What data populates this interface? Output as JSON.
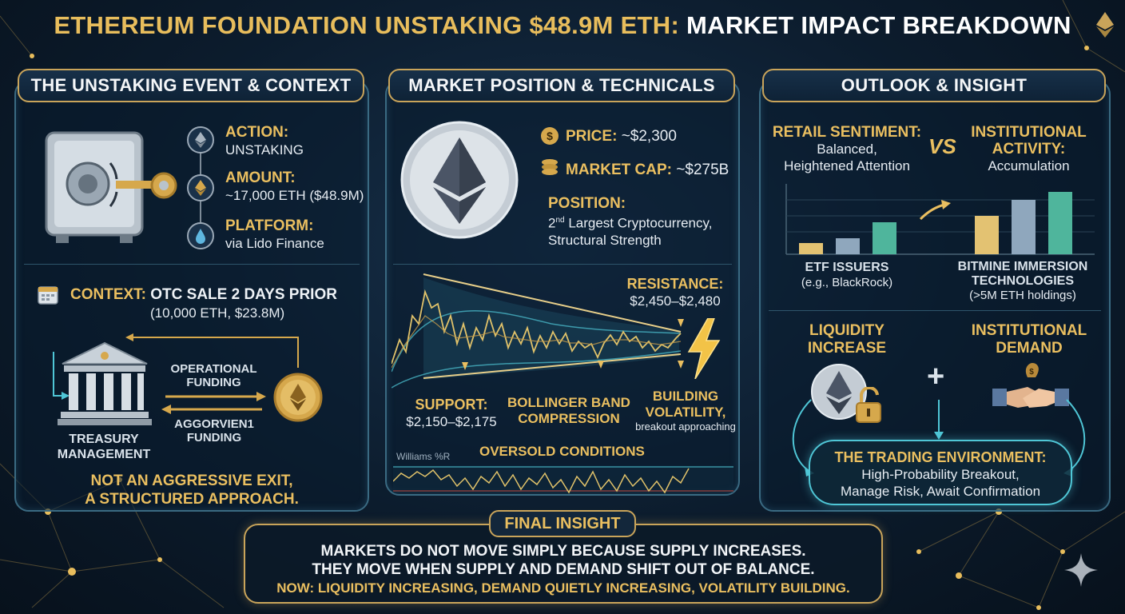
{
  "title": {
    "gold": "ETHEREUM FOUNDATION UNSTAKING $48.9M ETH:",
    "white": "MARKET IMPACT BREAKDOWN"
  },
  "left": {
    "header": "THE UNSTAKING EVENT & CONTEXT",
    "action_label": "ACTION:",
    "action_value": "UNSTAKING",
    "amount_label": "AMOUNT:",
    "amount_value": "~17,000 ETH ($48.9M)",
    "platform_label": "PLATFORM:",
    "platform_value": "via Lido Finance",
    "context_label": "CONTEXT:",
    "context_value": "OTC SALE 2 DAYS PRIOR",
    "context_sub": "(10,000 ETH, $23.8M)",
    "treasury_line1": "TREASURY",
    "treasury_line2": "MANAGEMENT",
    "op_funding_1": "OPERATIONAL",
    "op_funding_2": "FUNDING",
    "agg_funding_1": "AGGORVIEN1",
    "agg_funding_2": "FUNDING",
    "conclusion_1": "NOT AN AGGRESSIVE EXIT,",
    "conclusion_2": "A STRUCTURED APPROACH."
  },
  "middle": {
    "header": "MARKET POSITION & TECHNICALS",
    "price_label": "PRICE:",
    "price_value": "~$2,300",
    "mcap_label": "MARKET CAP:",
    "mcap_value": "~$275B",
    "position_label": "POSITION:",
    "position_line1_num": "2",
    "position_line1_sup": "nd",
    "position_line1_rest": "Largest Cryptocurrency,",
    "position_line2": "Structural Strength",
    "resistance_label": "RESISTANCE:",
    "resistance_value": "$2,450–$2,480",
    "support_label": "SUPPORT:",
    "support_value": "$2,150–$2,175",
    "bollinger_1": "BOLLINGER BAND",
    "bollinger_2": "COMPRESSION",
    "volatility_1": "BUILDING",
    "volatility_2": "VOLATILITY,",
    "volatility_3": "breakout approaching",
    "williams_label": "Williams %R",
    "oversold_label": "OVERSOLD CONDITIONS"
  },
  "right": {
    "header": "OUTLOOK & INSIGHT",
    "retail_label": "RETAIL SENTIMENT:",
    "retail_value_1": "Balanced,",
    "retail_value_2": "Heightened Attention",
    "vs": "VS",
    "inst_label_1": "INSTITUTIONAL",
    "inst_label_2": "ACTIVITY:",
    "inst_value": "Accumulation",
    "etf_label": "ETF ISSUERS",
    "etf_sub": "(e.g., BlackRock)",
    "bitmine_1": "BITMINE IMMERSION",
    "bitmine_2": "TECHNOLOGIES",
    "bitmine_sub": "(>5M ETH holdings)",
    "liquidity_1": "LIQUIDITY",
    "liquidity_2": "INCREASE",
    "plus": "+",
    "demand_1": "INSTITUTIONAL",
    "demand_2": "DEMAND",
    "trading_label": "THE TRADING ENVIRONMENT:",
    "trading_1": "High-Probability Breakout,",
    "trading_2": "Manage Risk, Await Confirmation"
  },
  "insight": {
    "header": "FINAL INSIGHT",
    "line1": "MARKETS DO NOT MOVE SIMPLY BECAUSE SUPPLY INCREASES.",
    "line2": "THEY MOVE WHEN SUPPLY AND DEMAND SHIFT OUT OF BALANCE.",
    "line3": "NOW: LIQUIDITY INCREASING, DEMAND QUIETLY INCREASING, VOLATILITY BUILDING."
  },
  "colors": {
    "gold": "#eabf60",
    "teal": "#4fc6d6",
    "panel_border": "#3a6a82"
  },
  "icons": [
    "vault-icon",
    "key-icon",
    "ethereum-icon",
    "drop-icon",
    "calendar-icon",
    "bank-icon",
    "coin-icon",
    "dollar-icon",
    "stack-icon",
    "lightning-icon",
    "lock-icon",
    "handshake-icon",
    "sparkle-icon"
  ]
}
